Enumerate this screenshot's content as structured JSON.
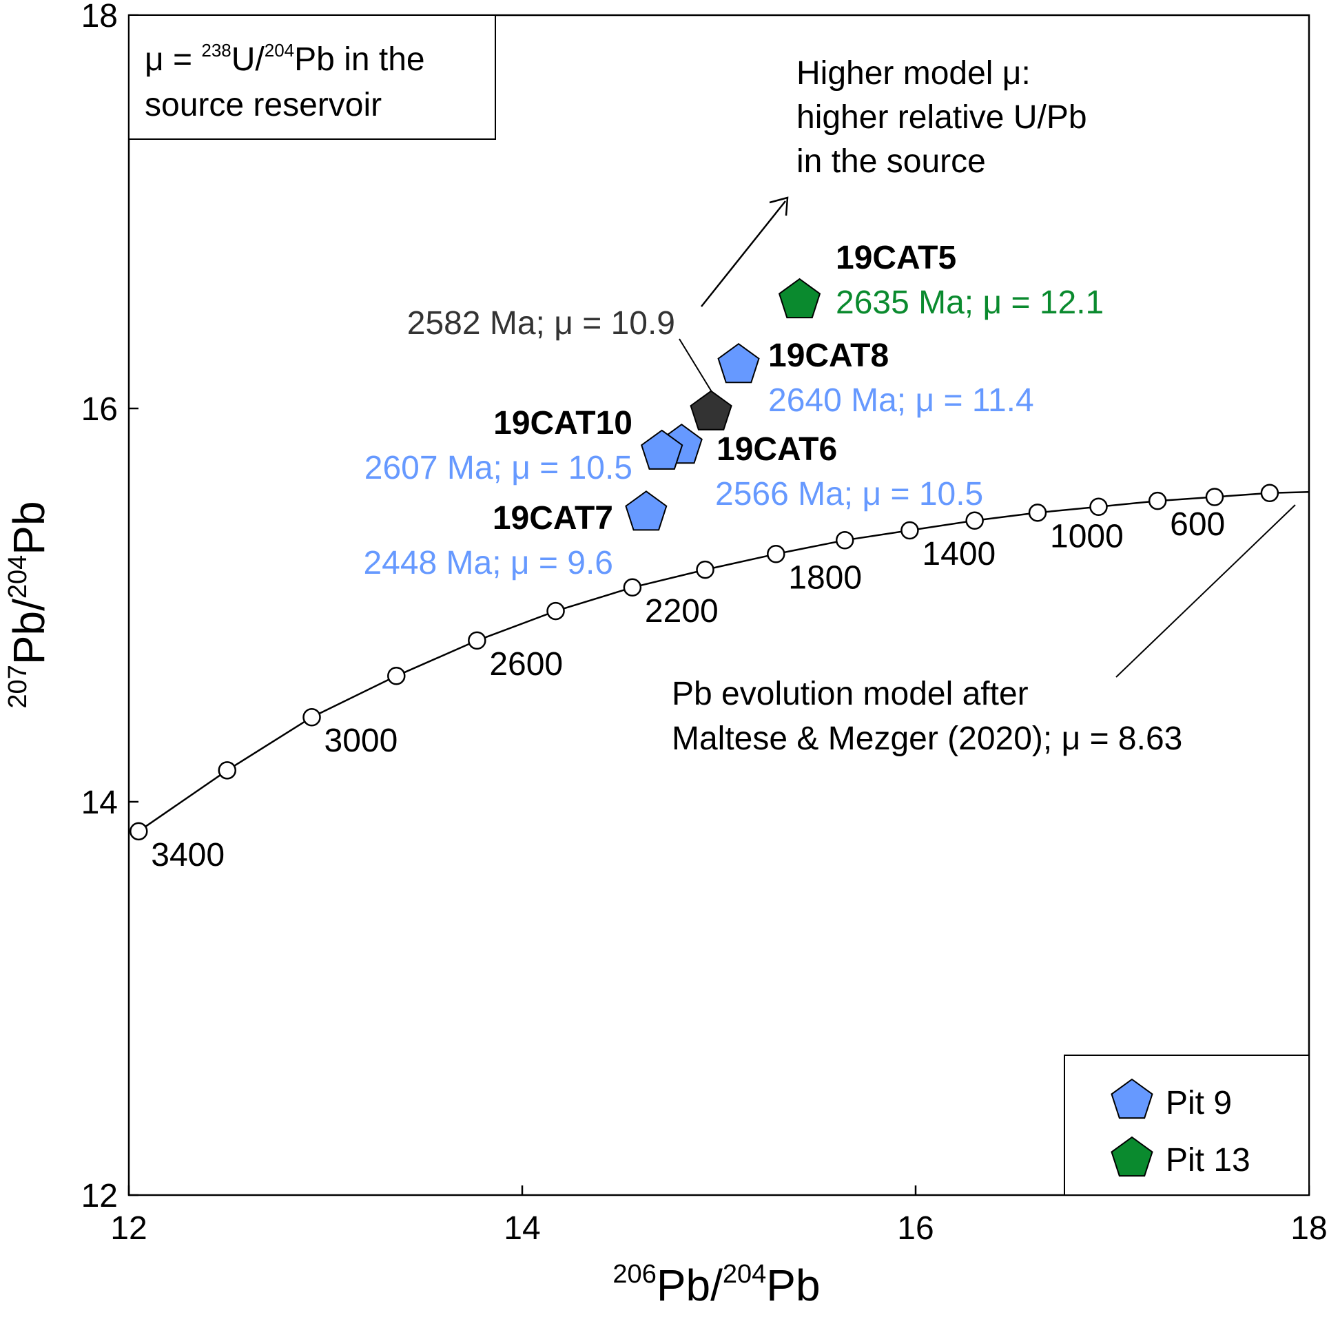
{
  "chart_data": {
    "type": "scatter",
    "xlabel": {
      "sup1": "206",
      "base1": "Pb/",
      "sup2": "204",
      "base2": "Pb"
    },
    "ylabel": {
      "sup1": "207",
      "base1": "Pb/",
      "sup2": "204",
      "base2": "Pb"
    },
    "xlim": [
      12,
      18
    ],
    "ylim": [
      12,
      18
    ],
    "xticks": [
      12,
      14,
      16,
      18
    ],
    "yticks": [
      12,
      14,
      16,
      18
    ],
    "grid": false,
    "legend_position": "bottom-right",
    "info_box": {
      "line1_pre": "μ = ",
      "line1_sup1": "238",
      "line1_mid": "U/",
      "line1_sup2": "204",
      "line1_post": "Pb in the",
      "line2": "source reservoir"
    },
    "model_curve": {
      "label_line1": "Pb evolution model after",
      "label_line2": "Maltese & Mezger (2020); μ = 8.63",
      "points": [
        {
          "age": 3400,
          "x": 12.05,
          "y": 13.85
        },
        {
          "age": 3200,
          "x": 12.5,
          "y": 14.16
        },
        {
          "age": 3000,
          "x": 12.93,
          "y": 14.43
        },
        {
          "age": 2800,
          "x": 13.36,
          "y": 14.64
        },
        {
          "age": 2600,
          "x": 13.77,
          "y": 14.82
        },
        {
          "age": 2400,
          "x": 14.17,
          "y": 14.97
        },
        {
          "age": 2200,
          "x": 14.56,
          "y": 15.09
        },
        {
          "age": 2000,
          "x": 14.93,
          "y": 15.18
        },
        {
          "age": 1800,
          "x": 15.29,
          "y": 15.26
        },
        {
          "age": 1600,
          "x": 15.64,
          "y": 15.33
        },
        {
          "age": 1400,
          "x": 15.97,
          "y": 15.38
        },
        {
          "age": 1200,
          "x": 16.3,
          "y": 15.43
        },
        {
          "age": 1000,
          "x": 16.62,
          "y": 15.47
        },
        {
          "age": 800,
          "x": 16.93,
          "y": 15.5
        },
        {
          "age": 600,
          "x": 17.23,
          "y": 15.53
        },
        {
          "age": 400,
          "x": 17.52,
          "y": 15.55
        },
        {
          "age": 200,
          "x": 17.8,
          "y": 15.57
        }
      ],
      "labels": [
        {
          "text": "3400",
          "age": 3400
        },
        {
          "text": "3000",
          "age": 3000
        },
        {
          "text": "2600",
          "age": 2600
        },
        {
          "text": "2200",
          "age": 2200
        },
        {
          "text": "1800",
          "age": 1800
        },
        {
          "text": "1400",
          "age": 1400
        },
        {
          "text": "1000",
          "age": 1000
        },
        {
          "text": "600",
          "age": 600
        }
      ]
    },
    "arrow_annotation": {
      "line1": "Higher model μ:",
      "line2": "higher relative U/Pb",
      "line3": "in the source"
    },
    "series": [
      {
        "name": "Pit 9",
        "color": "#6699ff"
      },
      {
        "name": "Pit 13",
        "color": "#0a8a2e"
      }
    ],
    "samples": [
      {
        "id": "19CAT5",
        "info": "2635 Ma; μ = 12.1",
        "x": 15.41,
        "y": 16.55,
        "series": "Pit 13",
        "color": "#0a8a2e"
      },
      {
        "id": "19CAT8",
        "info": "2640 Ma; μ = 11.4",
        "x": 15.1,
        "y": 16.22,
        "series": "Pit 9",
        "color": "#6699ff"
      },
      {
        "id": "",
        "info": "2582 Ma; μ = 10.9",
        "x": 14.96,
        "y": 15.98,
        "series": "",
        "color": "#333333"
      },
      {
        "id": "19CAT6",
        "info": "2566 Ma; μ = 10.5",
        "x": 14.81,
        "y": 15.81,
        "series": "Pit 9",
        "color": "#6699ff"
      },
      {
        "id": "19CAT10",
        "info": "2607 Ma; μ = 10.5",
        "x": 14.71,
        "y": 15.78,
        "series": "Pit 9",
        "color": "#6699ff"
      },
      {
        "id": "19CAT7",
        "info": "2448 Ma; μ = 9.6",
        "x": 14.63,
        "y": 15.47,
        "series": "Pit 9",
        "color": "#6699ff"
      }
    ]
  }
}
